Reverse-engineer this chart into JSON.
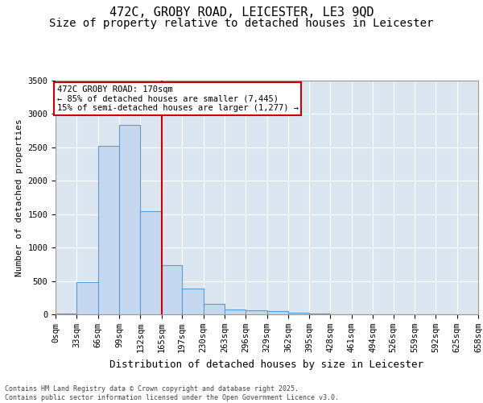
{
  "title": "472C, GROBY ROAD, LEICESTER, LE3 9QD",
  "subtitle": "Size of property relative to detached houses in Leicester",
  "xlabel": "Distribution of detached houses by size in Leicester",
  "ylabel": "Number of detached properties",
  "bar_color": "#c5d8f0",
  "bar_edge_color": "#5b9bd5",
  "background_color": "#dce6f0",
  "grid_color": "#ffffff",
  "bin_labels": [
    "0sqm",
    "33sqm",
    "66sqm",
    "99sqm",
    "132sqm",
    "165sqm",
    "197sqm",
    "230sqm",
    "263sqm",
    "296sqm",
    "329sqm",
    "362sqm",
    "395sqm",
    "428sqm",
    "461sqm",
    "494sqm",
    "526sqm",
    "559sqm",
    "592sqm",
    "625sqm",
    "658sqm"
  ],
  "bin_edges": [
    0,
    33,
    66,
    99,
    132,
    165,
    197,
    230,
    263,
    296,
    329,
    362,
    395,
    428,
    461,
    494,
    526,
    559,
    592,
    625,
    658
  ],
  "bar_heights": [
    18,
    478,
    2520,
    2840,
    1540,
    735,
    385,
    158,
    78,
    58,
    48,
    28,
    10,
    5,
    4,
    3,
    2,
    1,
    1,
    0
  ],
  "property_line_x": 165,
  "annotation_line1": "472C GROBY ROAD: 170sqm",
  "annotation_line2": "← 85% of detached houses are smaller (7,445)",
  "annotation_line3": "15% of semi-detached houses are larger (1,277) →",
  "annotation_box_color": "#cc0000",
  "ylim": [
    0,
    3500
  ],
  "yticks": [
    0,
    500,
    1000,
    1500,
    2000,
    2500,
    3000,
    3500
  ],
  "footer_line1": "Contains HM Land Registry data © Crown copyright and database right 2025.",
  "footer_line2": "Contains public sector information licensed under the Open Government Licence v3.0.",
  "title_fontsize": 11,
  "subtitle_fontsize": 10,
  "axis_label_fontsize": 8,
  "tick_fontsize": 7.5,
  "annotation_fontsize": 7.5,
  "footer_fontsize": 6
}
